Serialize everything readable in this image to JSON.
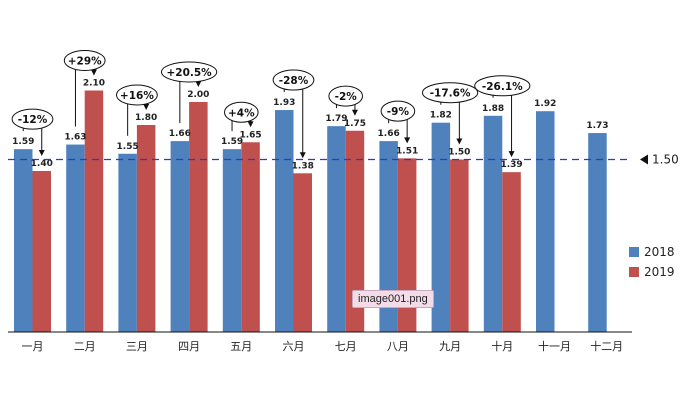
{
  "chart_data": {
    "type": "bar",
    "categories": [
      "一月",
      "二月",
      "三月",
      "四月",
      "五月",
      "六月",
      "七月",
      "八月",
      "九月",
      "十月",
      "十一月",
      "十二月"
    ],
    "series": [
      {
        "name": "2018",
        "color": "#4f81bd",
        "values": [
          1.59,
          1.63,
          1.55,
          1.66,
          1.59,
          1.93,
          1.79,
          1.66,
          1.82,
          1.88,
          1.92,
          1.73
        ]
      },
      {
        "name": "2019",
        "color": "#c0504d",
        "values": [
          1.4,
          2.1,
          1.8,
          2.0,
          1.65,
          1.38,
          1.75,
          1.51,
          1.5,
          1.39,
          null,
          null
        ]
      }
    ],
    "value_labels": {
      "2018": [
        "1.59",
        "1.63",
        "1.55",
        "1.66",
        "1.59",
        "1.93",
        "1.79",
        "1.66",
        "1.82",
        "1.88",
        "1.92",
        "1.73"
      ],
      "2019": [
        "1.40",
        "2.10",
        "1.80",
        "2.00",
        "1.65",
        "1.38",
        "1.75",
        "1.51",
        "1.50",
        "1.39",
        "",
        ""
      ]
    },
    "annotations": [
      "-12%",
      "+29%",
      "+16%",
      "+20.5%",
      "+4%",
      "-28%",
      "-2%",
      "-9%",
      "-17.6%",
      "-26.1%"
    ],
    "reference_line": {
      "value": 1.5,
      "label": "1.50",
      "color": "#1f3fd1"
    },
    "ylim": [
      0,
      2.4
    ],
    "legend_position": "right",
    "grid": false
  },
  "tooltip": "image001.png"
}
